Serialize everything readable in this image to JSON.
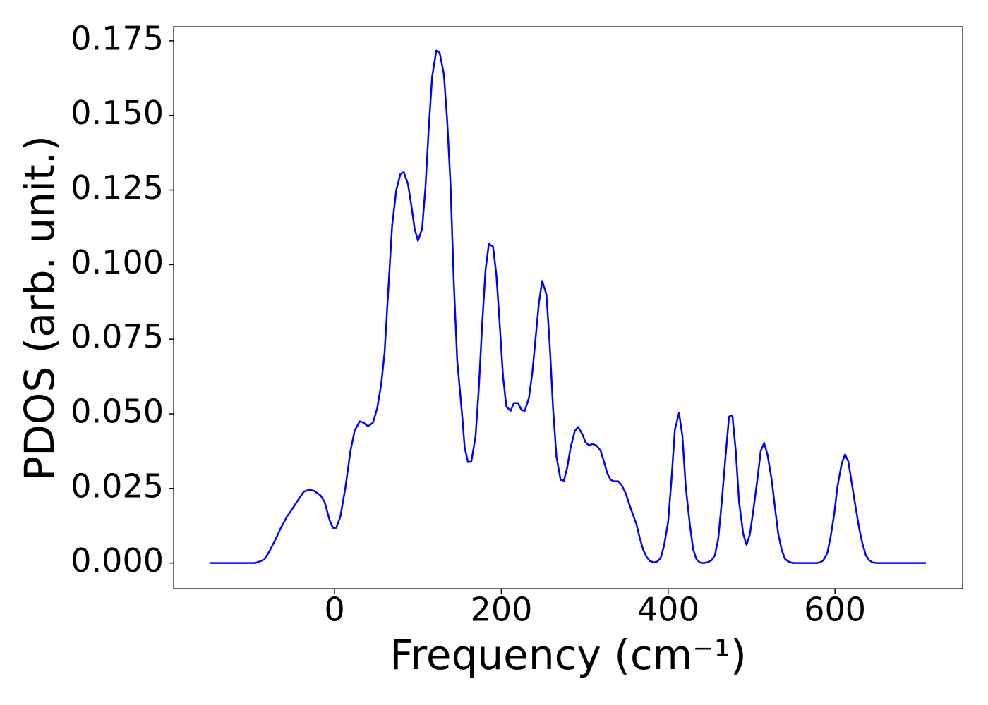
{
  "chart_data": {
    "type": "line",
    "xlabel": "Frequency (cm⁻¹)",
    "ylabel": "PDOS (arb. unit.)",
    "x": [
      -150,
      -120,
      -95,
      -90,
      -84,
      -78,
      -71,
      -64,
      -57,
      -51,
      -44,
      -37,
      -30,
      -24,
      -17,
      -12,
      -6,
      -2,
      2,
      7,
      13,
      19,
      24,
      30,
      35,
      40,
      46,
      51,
      56,
      60,
      64,
      69,
      74,
      79,
      83,
      88,
      92,
      96,
      100,
      105,
      109,
      113,
      117,
      122,
      126,
      131,
      135,
      139,
      143,
      147,
      153,
      156,
      160,
      164,
      169,
      173,
      177,
      181,
      185,
      190,
      194,
      198,
      202,
      206,
      211,
      215,
      220,
      224,
      228,
      233,
      237,
      241,
      245,
      249,
      254,
      258,
      262,
      266,
      271,
      275,
      279,
      283,
      288,
      292,
      297,
      301,
      305,
      309,
      314,
      319,
      323,
      327,
      331,
      335,
      340,
      344,
      349,
      353,
      357,
      362,
      366,
      370,
      374,
      378,
      383,
      387,
      391,
      395,
      400,
      404,
      408,
      413,
      417,
      421,
      426,
      430,
      434,
      438,
      442,
      447,
      452,
      456,
      460,
      464,
      469,
      473,
      477,
      481,
      485,
      490,
      494,
      498,
      502,
      507,
      511,
      515,
      519,
      524,
      528,
      532,
      536,
      540,
      544,
      549,
      578,
      582,
      586,
      591,
      595,
      599,
      603,
      608,
      612,
      616,
      620,
      625,
      629,
      633,
      637,
      641,
      645,
      650,
      709
    ],
    "series": [
      {
        "color": "#0000ff",
        "values": [
          0,
          0,
          0,
          0.0005,
          0.0012,
          0.004,
          0.0078,
          0.012,
          0.0156,
          0.018,
          0.021,
          0.0239,
          0.0246,
          0.0241,
          0.0227,
          0.0205,
          0.0144,
          0.0118,
          0.0118,
          0.0156,
          0.0253,
          0.0375,
          0.0442,
          0.0475,
          0.047,
          0.0458,
          0.047,
          0.0517,
          0.06,
          0.0706,
          0.0895,
          0.113,
          0.125,
          0.1304,
          0.131,
          0.127,
          0.12,
          0.112,
          0.108,
          0.112,
          0.126,
          0.146,
          0.163,
          0.1717,
          0.171,
          0.164,
          0.1485,
          0.127,
          0.094,
          0.068,
          0.0494,
          0.0387,
          0.0338,
          0.034,
          0.0423,
          0.0588,
          0.08,
          0.0982,
          0.107,
          0.106,
          0.0966,
          0.08,
          0.0624,
          0.0524,
          0.051,
          0.0536,
          0.0536,
          0.0513,
          0.051,
          0.0553,
          0.0635,
          0.0753,
          0.0872,
          0.0945,
          0.09,
          0.073,
          0.0517,
          0.0357,
          0.0279,
          0.0276,
          0.0321,
          0.0387,
          0.0442,
          0.0456,
          0.0432,
          0.0404,
          0.0394,
          0.0399,
          0.0394,
          0.0376,
          0.034,
          0.03,
          0.0279,
          0.0274,
          0.0274,
          0.0262,
          0.0234,
          0.02,
          0.0168,
          0.013,
          0.0083,
          0.0045,
          0.0021,
          0.0007,
          0.0002,
          0.0005,
          0.0017,
          0.0057,
          0.0139,
          0.0281,
          0.0446,
          0.0503,
          0.0427,
          0.0257,
          0.0128,
          0.0045,
          0.0012,
          0.0002,
          0,
          0.0002,
          0.0009,
          0.0026,
          0.008,
          0.0198,
          0.0364,
          0.0491,
          0.0494,
          0.0376,
          0.0205,
          0.0097,
          0.0061,
          0.0097,
          0.0175,
          0.0281,
          0.0376,
          0.0402,
          0.0364,
          0.0281,
          0.0187,
          0.0097,
          0.0045,
          0.0014,
          0.0005,
          0,
          0,
          0.0002,
          0.0009,
          0.0035,
          0.0092,
          0.0163,
          0.0257,
          0.0333,
          0.0364,
          0.034,
          0.0269,
          0.0182,
          0.0116,
          0.0064,
          0.0026,
          0.0009,
          0.0002,
          0,
          0
        ]
      }
    ],
    "xlim": [
      -193,
      753
    ],
    "ylim": [
      -0.0086,
      0.1797
    ],
    "xticks": [
      0,
      200,
      400,
      600
    ],
    "yticks": [
      {
        "value": 0,
        "label": "0.000"
      },
      0.025,
      {
        "value": 0.05,
        "label": "0.050"
      },
      0.075,
      {
        "value": 0.1,
        "label": "0.100"
      },
      0.125,
      {
        "value": 0.15,
        "label": "0.150"
      },
      0.175
    ],
    "grid": false
  }
}
